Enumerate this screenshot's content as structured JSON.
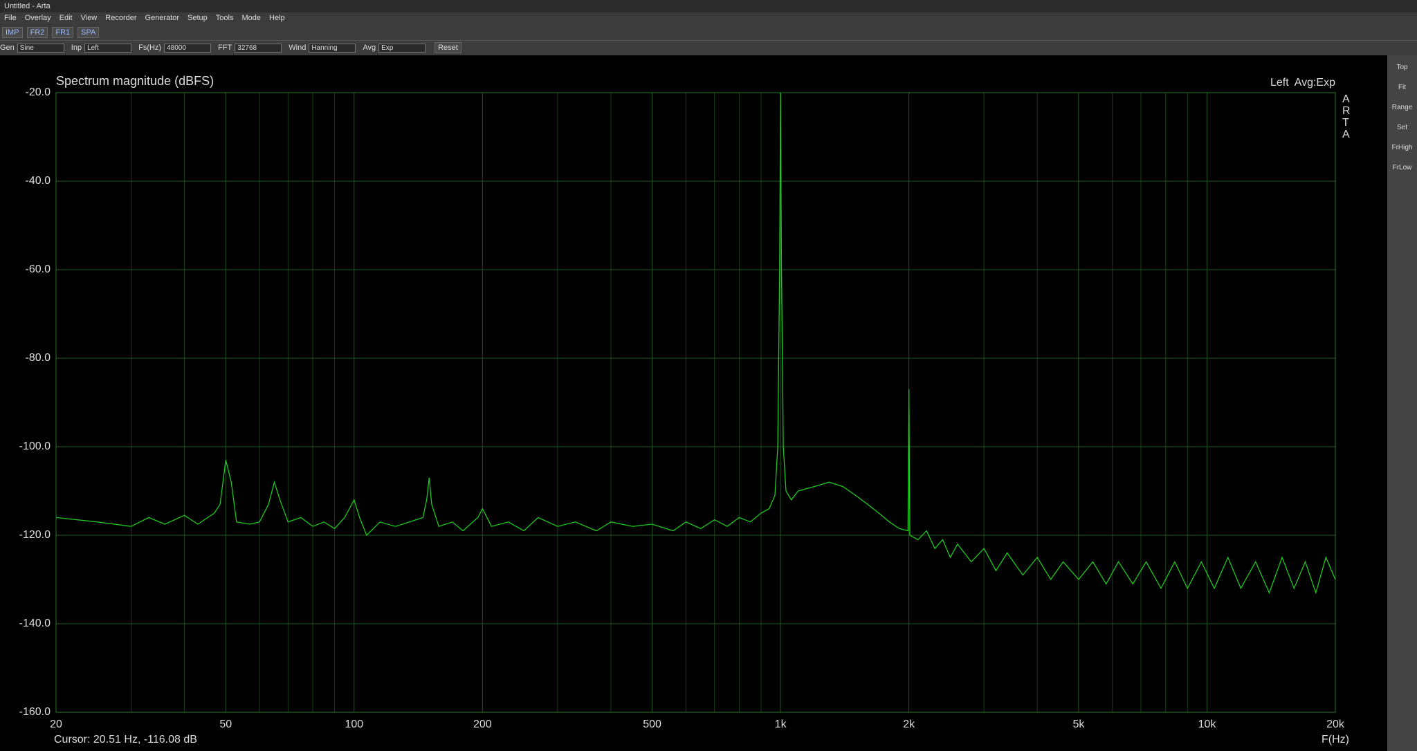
{
  "window": {
    "title": "Untitled - Arta",
    "menu": [
      "File",
      "Overlay",
      "Edit",
      "View",
      "Recorder",
      "Generator",
      "Setup",
      "Tools",
      "Mode",
      "Help"
    ],
    "toolbar_buttons": [
      "IMP",
      "FR2",
      "FR1",
      "SPA"
    ],
    "controls": [
      {
        "label": "Gen",
        "value": "Sine"
      },
      {
        "label": "Inp",
        "value": "Left"
      },
      {
        "label": "Fs(Hz)",
        "value": "48000"
      },
      {
        "label": "FFT",
        "value": "32768"
      },
      {
        "label": "Wind",
        "value": "Hanning"
      },
      {
        "label": "Avg",
        "value": "Exp"
      }
    ],
    "reset": "Reset",
    "side_panel": [
      "Top",
      "Fit",
      "Range",
      "Set",
      "FrHigh",
      "FrLow"
    ]
  },
  "chart_data": {
    "type": "line",
    "title": "Spectrum magnitude (dBFS)",
    "status": "Left  Avg:Exp",
    "logo": [
      "A",
      "R",
      "T",
      "A"
    ],
    "xlabel": "F(Hz)",
    "cursor": "Cursor: 20.51 Hz, -116.08 dB",
    "xscale": "log",
    "xlim": [
      20,
      20000
    ],
    "ylim": [
      -160,
      -20
    ],
    "xticks": [
      20,
      50,
      100,
      200,
      500,
      {
        "value": 1000,
        "label": "1k"
      },
      {
        "value": 2000,
        "label": "2k"
      },
      {
        "value": 5000,
        "label": "5k"
      },
      {
        "value": 10000,
        "label": "10k"
      },
      {
        "value": 20000,
        "label": "20k"
      }
    ],
    "xminor": [
      30,
      40,
      60,
      70,
      80,
      90,
      300,
      400,
      600,
      700,
      800,
      900,
      3000,
      4000,
      6000,
      7000,
      8000,
      9000
    ],
    "yticks": [
      {
        "value": -20,
        "label": "-20.0"
      },
      {
        "value": -40,
        "label": "-40.0"
      },
      {
        "value": -60,
        "label": "-60.0"
      },
      {
        "value": -80,
        "label": "-80.0"
      },
      {
        "value": -100,
        "label": "-100.0"
      },
      {
        "value": -120,
        "label": "-120.0"
      },
      {
        "value": -140,
        "label": "-140.0"
      },
      {
        "value": -160,
        "label": "-160.0"
      }
    ],
    "grid": true,
    "series": [
      {
        "color": "#1ec81e",
        "x": [
          20,
          25,
          30,
          33,
          36,
          40,
          43,
          47,
          48.5,
          50,
          51.5,
          53,
          57,
          60,
          63,
          65,
          67,
          70,
          75,
          80,
          85,
          90,
          95,
          100,
          103,
          107,
          115,
          125,
          135,
          145,
          148,
          150,
          152,
          158,
          170,
          180,
          195,
          200,
          210,
          230,
          250,
          270,
          300,
          330,
          370,
          400,
          450,
          500,
          560,
          600,
          650,
          700,
          750,
          800,
          850,
          900,
          940,
          970,
          985,
          995,
          1000,
          1005,
          1015,
          1030,
          1060,
          1100,
          1200,
          1300,
          1400,
          1500,
          1600,
          1700,
          1800,
          1900,
          1990,
          2000,
          2010,
          2100,
          2200,
          2300,
          2400,
          2500,
          2600,
          2800,
          3000,
          3200,
          3400,
          3700,
          4000,
          4300,
          4600,
          5000,
          5400,
          5800,
          6200,
          6700,
          7200,
          7800,
          8400,
          9000,
          9700,
          10400,
          11200,
          12000,
          13000,
          14000,
          15000,
          16000,
          17000,
          18000,
          19000,
          20000
        ],
        "values": [
          -116,
          -117,
          -118,
          -116,
          -117.5,
          -115.5,
          -117.5,
          -115,
          -113,
          -103,
          -108,
          -117,
          -117.5,
          -117,
          -113,
          -108,
          -112,
          -117,
          -116,
          -118,
          -117,
          -118.5,
          -116,
          -112,
          -116,
          -120,
          -117,
          -118,
          -117,
          -116,
          -112,
          -107,
          -113,
          -118,
          -117,
          -119,
          -116,
          -114,
          -118,
          -117,
          -119,
          -116,
          -118,
          -117,
          -119,
          -117,
          -118,
          -117.5,
          -119,
          -117,
          -118.5,
          -116.5,
          -118,
          -116,
          -117,
          -115,
          -114,
          -111,
          -100,
          -60,
          -20,
          -60,
          -100,
          -110,
          -112,
          -110,
          -109,
          -108,
          -109,
          -111,
          -113,
          -115,
          -117,
          -118.5,
          -119,
          -87,
          -120,
          -121,
          -119,
          -123,
          -121,
          -125,
          -122,
          -126,
          -123,
          -128,
          -124,
          -129,
          -125,
          -130,
          -126,
          -130,
          -126,
          -131,
          -126,
          -131,
          -126,
          -132,
          -126,
          -132,
          -126,
          -132,
          -125,
          -132,
          -126,
          -133,
          -125,
          -132,
          -126,
          -133,
          -125,
          -130
        ]
      }
    ]
  }
}
